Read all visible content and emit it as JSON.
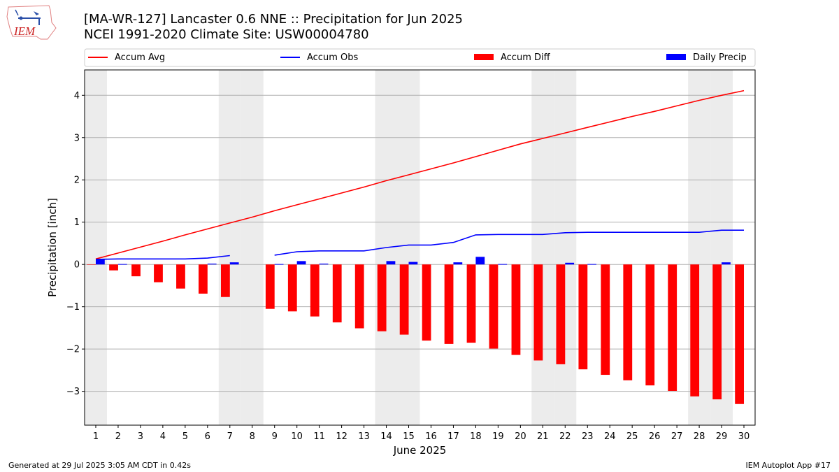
{
  "header": {
    "title_line1": "[MA-WR-127] Lancaster 0.6 NNE :: Precipitation for Jun 2025",
    "title_line2": "NCEI 1991-2020 Climate Site: USW00004780",
    "logo_text": "IEM"
  },
  "footer": {
    "generated": "Generated at 29 Jul 2025 3:05 AM CDT in 0.42s",
    "app": "IEM Autoplot App #17"
  },
  "colors": {
    "accum_avg": "#ff0000",
    "accum_obs": "#0000ff",
    "accum_diff": "#ff0000",
    "daily_precip": "#0000ff",
    "weekend_shade": "#ececec",
    "grid": "#b0b0b0"
  },
  "chart_data": {
    "type": "bar",
    "xlabel": "June 2025",
    "ylabel": "Precipitation [inch]",
    "xlim": [
      0.5,
      30.5
    ],
    "ylim": [
      -3.8,
      4.6
    ],
    "yticks": [
      -3,
      -2,
      -1,
      0,
      1,
      2,
      3,
      4
    ],
    "grid": "horizontal",
    "legend_position": "top",
    "legend": [
      "Accum Avg",
      "Accum Obs",
      "Accum Diff",
      "Daily Precip"
    ],
    "x": [
      1,
      2,
      3,
      4,
      5,
      6,
      7,
      8,
      9,
      10,
      11,
      12,
      13,
      14,
      15,
      16,
      17,
      18,
      19,
      20,
      21,
      22,
      23,
      24,
      25,
      26,
      27,
      28,
      29,
      30
    ],
    "shaded_days": [
      1,
      7,
      8,
      14,
      15,
      21,
      22,
      28,
      29
    ],
    "series": [
      {
        "name": "Accum Avg",
        "kind": "line",
        "values": [
          0.13,
          0.27,
          0.41,
          0.55,
          0.7,
          0.84,
          0.98,
          1.12,
          1.27,
          1.41,
          1.55,
          1.69,
          1.83,
          1.98,
          2.12,
          2.26,
          2.4,
          2.55,
          2.7,
          2.85,
          2.98,
          3.11,
          3.24,
          3.37,
          3.5,
          3.62,
          3.75,
          3.88,
          4.0,
          4.11
        ]
      },
      {
        "name": "Accum Obs",
        "kind": "line",
        "values": [
          0.12,
          0.13,
          0.13,
          0.13,
          0.13,
          0.15,
          0.21,
          null,
          0.22,
          0.3,
          0.32,
          0.32,
          0.32,
          0.4,
          0.46,
          0.46,
          0.52,
          0.7,
          0.71,
          0.71,
          0.71,
          0.75,
          0.76,
          0.76,
          0.76,
          0.76,
          0.76,
          0.76,
          0.81,
          0.81
        ]
      },
      {
        "name": "Accum Diff",
        "kind": "bar",
        "values": [
          -0.01,
          -0.14,
          -0.28,
          -0.42,
          -0.57,
          -0.69,
          -0.77,
          null,
          -1.05,
          -1.11,
          -1.23,
          -1.37,
          -1.51,
          -1.58,
          -1.66,
          -1.8,
          -1.88,
          -1.85,
          -1.99,
          -2.14,
          -2.27,
          -2.36,
          -2.48,
          -2.61,
          -2.74,
          -2.86,
          -2.99,
          -3.12,
          -3.19,
          -3.3
        ]
      },
      {
        "name": "Daily Precip",
        "kind": "bar",
        "values": [
          0.12,
          0.01,
          0,
          0,
          0,
          0.02,
          0.05,
          null,
          0.01,
          0.08,
          0.02,
          0,
          0,
          0.08,
          0.06,
          0,
          0.05,
          0.18,
          0.01,
          0,
          0,
          0.04,
          0.01,
          0,
          0,
          0,
          0,
          0,
          0.05,
          0
        ]
      }
    ]
  }
}
